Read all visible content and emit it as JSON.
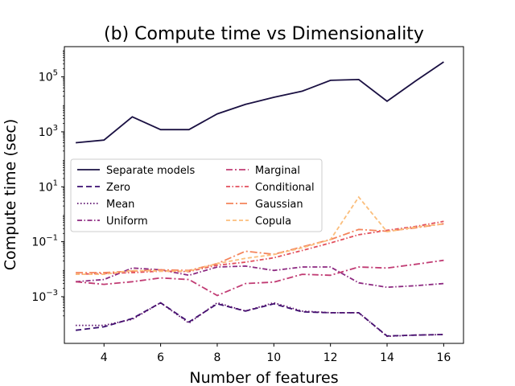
{
  "chart_data": {
    "type": "line",
    "title": "(b) Compute time vs Dimensionality",
    "xlabel": "Number of features",
    "ylabel": "Compute time (sec)",
    "xlim": [
      2.6,
      16.7
    ],
    "ylim_log10": [
      -4.7,
      6.1
    ],
    "y_scale": "log",
    "x_ticks": [
      4,
      6,
      8,
      10,
      12,
      14,
      16
    ],
    "y_ticks": [
      {
        "exp": 5,
        "base": "10",
        "sup": "5"
      },
      {
        "exp": 3,
        "base": "10",
        "sup": "3"
      },
      {
        "exp": 1,
        "base": "10",
        "sup": "1"
      },
      {
        "exp": -1,
        "base": "10",
        "sup": "−1"
      },
      {
        "exp": -3,
        "base": "10",
        "sup": "−3"
      }
    ],
    "legend_position": "center-left",
    "x": [
      3,
      4,
      5,
      6,
      7,
      8,
      9,
      10,
      11,
      12,
      13,
      14,
      15,
      16
    ],
    "series": [
      {
        "name": "Separate models",
        "color": "#1a1042",
        "dash": "",
        "values": [
          400,
          500,
          3500,
          1200,
          1200,
          4500,
          10000,
          18000,
          30000,
          75000,
          80000,
          13000,
          70000,
          350000
        ]
      },
      {
        "name": "Zero",
        "color": "#3b0f70",
        "dash": "7,4",
        "values": [
          6e-05,
          8e-05,
          0.00016,
          0.0006,
          0.00012,
          0.00055,
          0.0003,
          0.00055,
          0.00028,
          0.00026,
          0.00026,
          3.7e-05,
          4e-05,
          4.2e-05
        ]
      },
      {
        "name": "Mean",
        "color": "#5c126e",
        "dash": "1.5,2.5",
        "values": [
          9e-05,
          9e-05,
          0.00015,
          0.0006,
          0.00011,
          0.0006,
          0.0003,
          0.0006,
          0.0003,
          0.00026,
          0.00026,
          3.6e-05,
          4e-05,
          4.2e-05
        ]
      },
      {
        "name": "Uniform",
        "color": "#8c2981",
        "dash": "6,2.5,1.5,2.5",
        "values": [
          0.0035,
          0.0042,
          0.011,
          0.0095,
          0.006,
          0.012,
          0.013,
          0.009,
          0.012,
          0.012,
          0.0032,
          0.0022,
          0.0025,
          0.003
        ]
      },
      {
        "name": "Marginal",
        "color": "#c13c74",
        "dash": "8,3,2,3",
        "values": [
          0.0035,
          0.0028,
          0.0035,
          0.0048,
          0.0042,
          0.0011,
          0.003,
          0.0034,
          0.0065,
          0.006,
          0.012,
          0.011,
          0.015,
          0.021
        ]
      },
      {
        "name": "Conditional",
        "color": "#e24f5c",
        "dash": "5,2.5,1.5,2.5",
        "values": [
          0.0065,
          0.007,
          0.0075,
          0.0085,
          0.0082,
          0.014,
          0.018,
          0.026,
          0.048,
          0.09,
          0.18,
          0.26,
          0.36,
          0.55
        ]
      },
      {
        "name": "Gaussian",
        "color": "#f4845b",
        "dash": "9,3,2,3",
        "values": [
          0.0075,
          0.0075,
          0.0085,
          0.0095,
          0.009,
          0.016,
          0.045,
          0.035,
          0.065,
          0.12,
          0.28,
          0.24,
          0.32,
          0.45
        ]
      },
      {
        "name": "Copula",
        "color": "#fbbe7c",
        "dash": "5,3",
        "values": [
          0.0065,
          0.0065,
          0.009,
          0.0085,
          0.0085,
          0.016,
          0.025,
          0.034,
          0.06,
          0.12,
          4.2,
          0.23,
          0.34,
          0.45
        ]
      }
    ]
  }
}
